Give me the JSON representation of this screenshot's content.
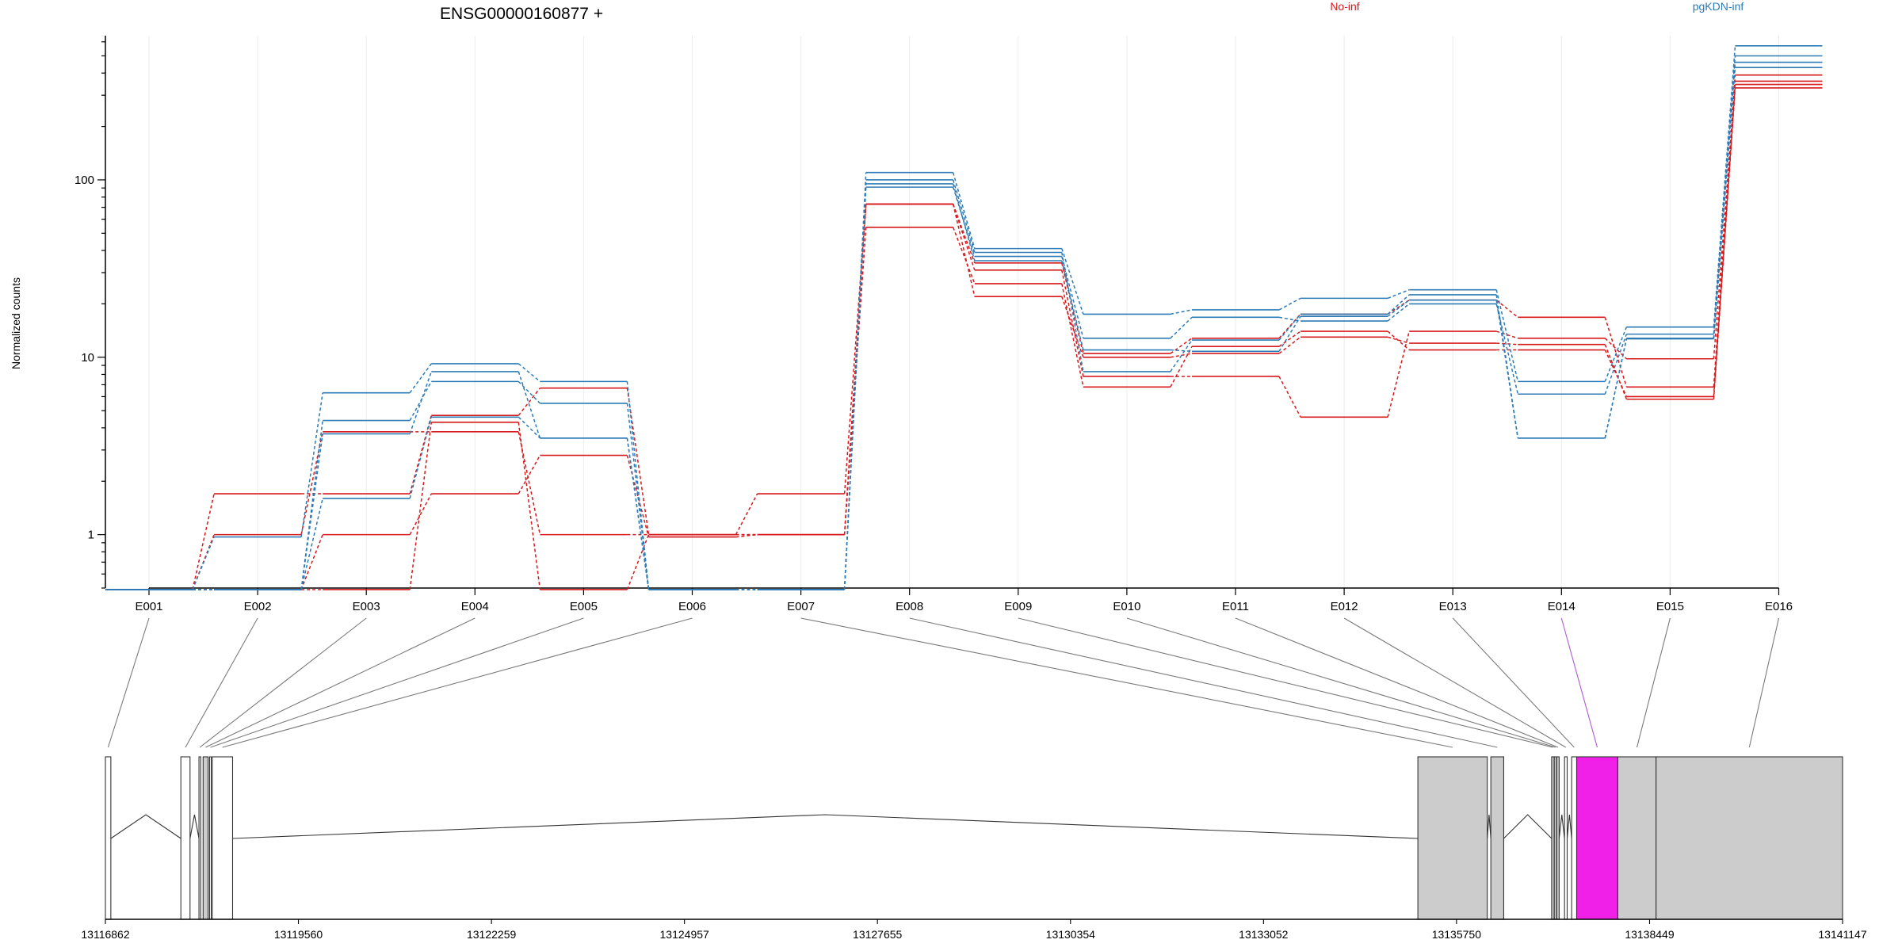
{
  "chart_data": [
    {
      "type": "line",
      "title": "ENSG00000160877 +",
      "ylabel": "Normalized counts",
      "xlabel": "",
      "yscale": "log",
      "ylim": [
        0.5,
        650
      ],
      "yticks": [
        1,
        10,
        100
      ],
      "ytick_labels": [
        "1",
        "10",
        "100"
      ],
      "grid": "vertical per exon",
      "legend": [
        {
          "name": "No-inf",
          "color": "#d7191c"
        },
        {
          "name": "pgKDN-inf",
          "color": "#2c7bb6"
        }
      ],
      "legend_placement": "top-right",
      "categories": [
        "E001",
        "E002",
        "E003",
        "E004",
        "E005",
        "E006",
        "E007",
        "E008",
        "E009",
        "E010",
        "E011",
        "E012",
        "E013",
        "E014",
        "E015",
        "E016"
      ],
      "series": [
        {
          "group": "No-inf",
          "color": "#d7191c",
          "values": [
            0.49,
            1.7,
            1.7,
            4.7,
            6.7,
            1.0,
            1.0,
            73,
            34,
            10.5,
            12.8,
            17.5,
            21.0,
            16.8,
            6.8,
            390
          ]
        },
        {
          "group": "No-inf",
          "color": "#d7191c",
          "values": [
            0.49,
            1.0,
            3.8,
            3.8,
            1.0,
            1.0,
            1.7,
            73,
            31,
            7.8,
            7.8,
            4.6,
            14.0,
            12.8,
            9.8,
            360
          ]
        },
        {
          "group": "No-inf",
          "color": "#d7191c",
          "values": [
            0.49,
            0.49,
            1.0,
            1.7,
            2.8,
            0.97,
            1.0,
            54,
            26,
            6.8,
            11.5,
            14.0,
            11.0,
            11.0,
            6.0,
            345
          ]
        },
        {
          "group": "No-inf",
          "color": "#d7191c",
          "values": [
            0.49,
            0.49,
            0.49,
            4.3,
            0.49,
            1.0,
            1.0,
            73,
            22,
            10.0,
            10.5,
            13.0,
            12.0,
            11.8,
            5.8,
            330
          ]
        },
        {
          "group": "pgKDN-inf",
          "color": "#2c7bb6",
          "values": [
            0.49,
            0.97,
            6.3,
            9.2,
            7.3,
            0.49,
            0.49,
            110,
            41,
            17.5,
            18.5,
            21.5,
            24.0,
            7.3,
            14.8,
            570
          ]
        },
        {
          "group": "pgKDN-inf",
          "color": "#2c7bb6",
          "values": [
            0.49,
            0.49,
            4.4,
            7.3,
            5.5,
            0.49,
            0.49,
            91,
            37,
            12.8,
            16.8,
            16.0,
            20.0,
            6.2,
            13.5,
            500
          ]
        },
        {
          "group": "pgKDN-inf",
          "color": "#2c7bb6",
          "values": [
            0.49,
            0.49,
            3.7,
            8.3,
            3.5,
            0.49,
            0.49,
            100,
            39,
            8.3,
            12.5,
            17.5,
            22.5,
            3.5,
            12.7,
            460
          ]
        },
        {
          "group": "pgKDN-inf",
          "color": "#2c7bb6",
          "values": [
            0.49,
            0.49,
            1.6,
            4.6,
            3.5,
            0.49,
            0.49,
            95,
            35,
            11.0,
            10.8,
            17.0,
            21.0,
            3.5,
            12.8,
            430
          ]
        }
      ]
    },
    {
      "type": "gene-model",
      "xlim": [
        13116862,
        13141147
      ],
      "xticks": [
        13116862,
        13119560,
        13122259,
        13124957,
        13127655,
        13130354,
        13133052,
        13135750,
        13138449,
        13141147
      ],
      "xtick_labels": [
        "13116862",
        "13119560",
        "13122259",
        "13124957",
        "13127655",
        "13130354",
        "13133052",
        "13135750",
        "13138449",
        "13141147"
      ],
      "exon_colors": {
        "counted": "#cccccc",
        "highlighted": "#f020e8",
        "uncounted": "#ffffff"
      },
      "highlighted_exon": "E014",
      "exons": [
        {
          "id": "E001",
          "start": 13116862,
          "end": 13116938,
          "fill": "white"
        },
        {
          "id": "E002",
          "start": 13117917,
          "end": 13118045,
          "fill": "white"
        },
        {
          "id": "E003",
          "start": 13118170,
          "end": 13118195,
          "fill": "white"
        },
        {
          "id": "E004",
          "start": 13118228,
          "end": 13118298,
          "fill": "grey"
        },
        {
          "id": "E005",
          "start": 13118318,
          "end": 13118343,
          "fill": "white"
        },
        {
          "id": "E006",
          "start": 13118355,
          "end": 13118640,
          "fill": "white"
        },
        {
          "id": "E007",
          "start": 13135210,
          "end": 13136180,
          "fill": "grey"
        },
        {
          "id": "E008",
          "start": 13136230,
          "end": 13136410,
          "fill": "grey"
        },
        {
          "id": "E009",
          "start": 13137080,
          "end": 13137115,
          "fill": "grey"
        },
        {
          "id": "E010",
          "start": 13137117,
          "end": 13137150,
          "fill": "grey"
        },
        {
          "id": "E011",
          "start": 13137152,
          "end": 13137185,
          "fill": "grey"
        },
        {
          "id": "E012",
          "start": 13137260,
          "end": 13137297,
          "fill": "white"
        },
        {
          "id": "E013",
          "start": 13137360,
          "end": 13137430,
          "fill": "white"
        },
        {
          "id": "E014",
          "start": 13137430,
          "end": 13138005,
          "fill": "magenta"
        },
        {
          "id": "E015",
          "start": 13138005,
          "end": 13138540,
          "fill": "grey"
        },
        {
          "id": "E016",
          "start": 13138540,
          "end": 13141147,
          "fill": "grey"
        }
      ],
      "introns": [
        {
          "from": 13116938,
          "to": 13117917
        },
        {
          "from": 13118045,
          "to": 13118170
        },
        {
          "from": 13118640,
          "to": 13135210
        },
        {
          "from": 13136180,
          "to": 13136230
        },
        {
          "from": 13136410,
          "to": 13137080
        },
        {
          "from": 13137185,
          "to": 13137260
        },
        {
          "from": 13137297,
          "to": 13137360
        }
      ]
    }
  ]
}
